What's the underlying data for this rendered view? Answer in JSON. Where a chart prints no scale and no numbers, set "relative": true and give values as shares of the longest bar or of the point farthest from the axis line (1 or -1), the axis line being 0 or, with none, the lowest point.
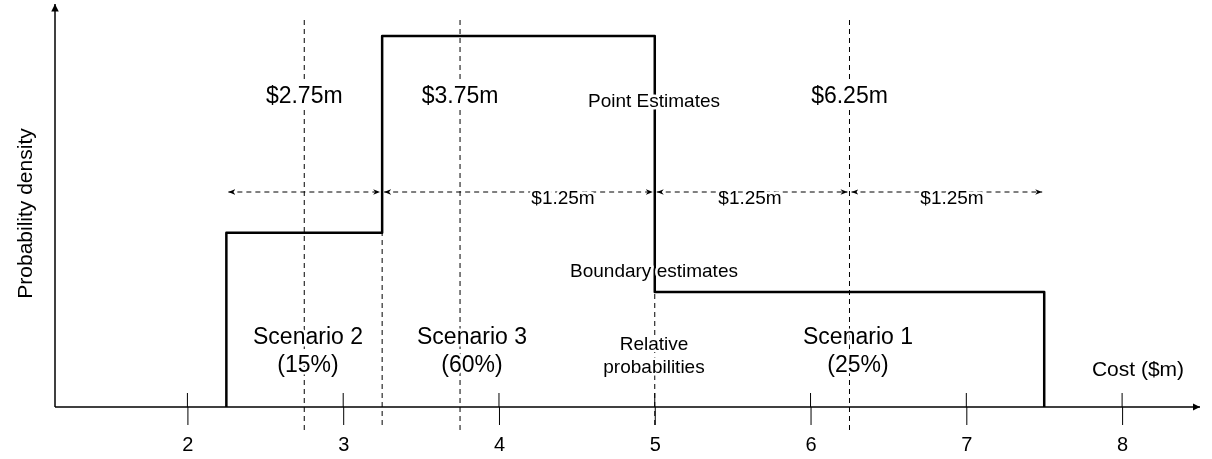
{
  "chart_data": {
    "type": "step",
    "relative": true,
    "xlabel": "Cost ($m)",
    "ylabel": "Probability density",
    "xlim": [
      1.15,
      8.5
    ],
    "xticks": [
      2,
      3,
      4,
      5,
      6,
      7,
      8
    ],
    "grid": false,
    "line_style": "solid",
    "marker": "none",
    "series": [
      {
        "color": "#000000",
        "x": [
          2.25,
          2.25,
          3.25,
          5,
          7.5
        ],
        "values": [
          0,
          0.47,
          1,
          0.31,
          0
        ]
      }
    ],
    "ref_lines": [
      {
        "axis": "x",
        "value": 2.75,
        "label": "$2.75m",
        "line_style": "dashed"
      },
      {
        "axis": "x",
        "value": 3.25,
        "label": null,
        "line_style": "dashed"
      },
      {
        "axis": "x",
        "value": 3.75,
        "label": "$3.75m",
        "line_style": "dashed"
      },
      {
        "axis": "x",
        "value": 5,
        "label": null,
        "line_style": "dashed"
      },
      {
        "axis": "x",
        "value": 6.25,
        "label": "$6.25m",
        "line_style": "dashed"
      }
    ],
    "annotations": [
      "Point Estimates",
      "Boundary estimates",
      "Relative\nprobabilities",
      "Scenario 2\n(15%)",
      "Scenario 3\n(60%)",
      "Scenario 1\n(25%)",
      "$1.25m",
      "$1.25m",
      "$1.25m"
    ]
  }
}
